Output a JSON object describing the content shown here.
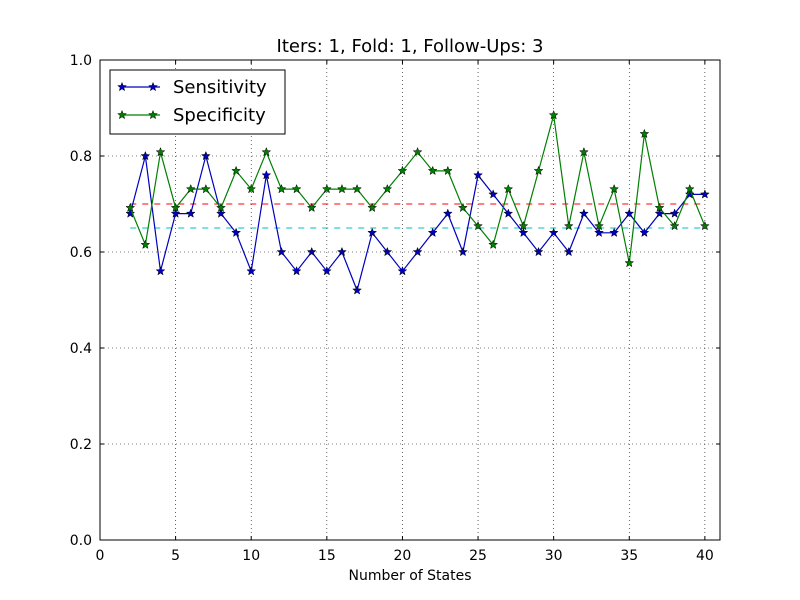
{
  "chart_data": {
    "type": "line",
    "title": "Iters: 1, Fold: 1, Follow-Ups: 3",
    "xlabel": "Number of States",
    "ylabel": "",
    "xlim": [
      0,
      41
    ],
    "ylim": [
      0.0,
      1.0
    ],
    "xticks": [
      0,
      5,
      10,
      15,
      20,
      25,
      30,
      35,
      40
    ],
    "yticks": [
      0.0,
      0.2,
      0.4,
      0.6,
      0.8,
      1.0
    ],
    "xtick_labels": [
      "0",
      "5",
      "10",
      "15",
      "20",
      "25",
      "30",
      "35",
      "40"
    ],
    "ytick_labels": [
      "0.0",
      "0.2",
      "0.4",
      "0.6",
      "0.8",
      "1.0"
    ],
    "grid": true,
    "legend_position": "top-left",
    "x": [
      2,
      3,
      4,
      5,
      6,
      7,
      8,
      9,
      10,
      11,
      12,
      13,
      14,
      15,
      16,
      17,
      18,
      19,
      20,
      21,
      22,
      23,
      24,
      25,
      26,
      27,
      28,
      29,
      30,
      31,
      32,
      33,
      34,
      35,
      36,
      37,
      38,
      39,
      40
    ],
    "series": [
      {
        "name": "Sensitivity",
        "color": "#0000bf",
        "marker": "star",
        "values": [
          0.68,
          0.8,
          0.56,
          0.68,
          0.68,
          0.8,
          0.68,
          0.64,
          0.56,
          0.76,
          0.6,
          0.56,
          0.6,
          0.56,
          0.6,
          0.52,
          0.64,
          0.6,
          0.56,
          0.6,
          0.64,
          0.68,
          0.6,
          0.76,
          0.72,
          0.68,
          0.64,
          0.6,
          0.64,
          0.6,
          0.68,
          0.64,
          0.64,
          0.68,
          0.64,
          0.68,
          0.68,
          0.72,
          0.72
        ]
      },
      {
        "name": "Specificity",
        "color": "#007f00",
        "marker": "star",
        "values": [
          0.692,
          0.615,
          0.808,
          0.692,
          0.731,
          0.731,
          0.692,
          0.769,
          0.731,
          0.808,
          0.731,
          0.731,
          0.692,
          0.731,
          0.731,
          0.731,
          0.692,
          0.731,
          0.769,
          0.808,
          0.769,
          0.769,
          0.692,
          0.654,
          0.615,
          0.731,
          0.654,
          0.769,
          0.885,
          0.654,
          0.808,
          0.654,
          0.731,
          0.577,
          0.846,
          0.692,
          0.654,
          0.731,
          0.654
        ]
      }
    ],
    "reference_lines": [
      {
        "y": 0.7,
        "color": "#ff0000",
        "style": "dashed",
        "x_range": [
          2,
          40
        ]
      },
      {
        "y": 0.65,
        "color": "#00bfbf",
        "style": "dashed",
        "x_range": [
          2,
          40
        ]
      }
    ]
  }
}
